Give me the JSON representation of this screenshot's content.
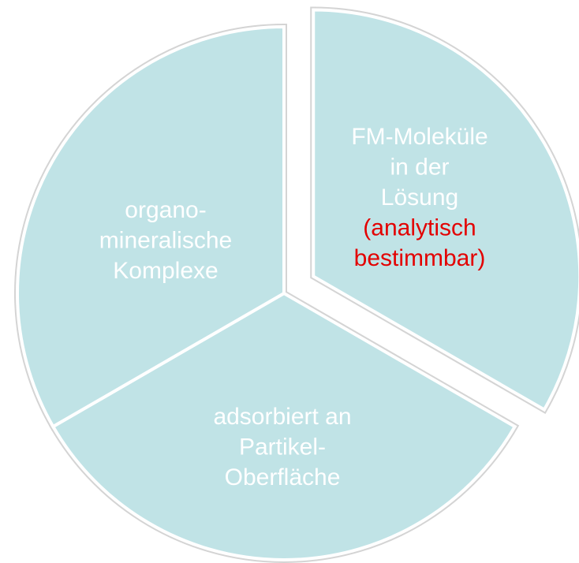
{
  "segments": [
    {
      "lines": [
        "FM-Moleküle",
        "in der",
        "Lösung"
      ],
      "highlight": [
        "(analytisch",
        "bestimmbar)"
      ]
    },
    {
      "lines": [
        "adsorbiert an",
        "Partikel-",
        "Oberfläche"
      ]
    },
    {
      "lines": [
        "organo-",
        "mineralische",
        "Komplexe"
      ]
    }
  ]
}
